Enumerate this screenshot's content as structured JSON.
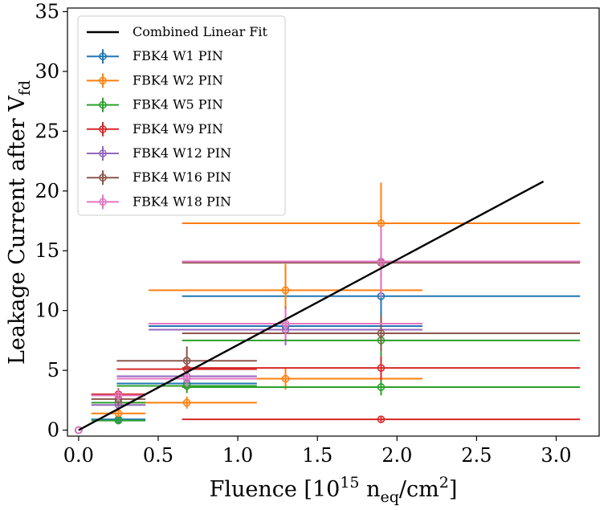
{
  "chart_data": {
    "type": "scatter",
    "title": "",
    "xlabel": {
      "main": "Fluence [10",
      "sup1": "15",
      "mid": " n",
      "sub": "eq",
      "after": "/cm",
      "sup2": "2",
      "close": "]"
    },
    "ylabel": {
      "main": "Leakage Current after V",
      "sub": "fd"
    },
    "xlim": [
      -0.07,
      3.27
    ],
    "ylim": [
      -0.5,
      35.3
    ],
    "xticks": [
      0.0,
      0.5,
      1.0,
      1.5,
      2.0,
      2.5,
      3.0
    ],
    "xtick_labels": [
      "0.0",
      "0.5",
      "1.0",
      "1.5",
      "2.0",
      "2.5",
      "3.0"
    ],
    "yticks": [
      0,
      5,
      10,
      15,
      20,
      25,
      30,
      35
    ],
    "ytick_labels": [
      "0",
      "5",
      "10",
      "15",
      "20",
      "25",
      "30",
      "35"
    ],
    "legend_position": "top-left",
    "fit": {
      "name": "Combined Linear Fit",
      "color": "#000000",
      "x": [
        0.0,
        2.92
      ],
      "y": [
        0.0,
        20.8
      ]
    },
    "series": [
      {
        "name": "FBK4 W1 PIN",
        "color": "#1f77b4",
        "points": [
          {
            "x": 0.0,
            "y": 0.0,
            "xerr": 0.0,
            "yerr": 0.0
          },
          {
            "x": 0.25,
            "y": 0.9,
            "xerr": 0.17,
            "yerr": 0.2
          },
          {
            "x": 0.68,
            "y": 3.9,
            "xerr": 0.44,
            "yerr": 0.6
          },
          {
            "x": 1.3,
            "y": 8.7,
            "xerr": 0.86,
            "yerr": 1.0
          },
          {
            "x": 1.9,
            "y": 11.2,
            "xerr": 1.25,
            "yerr": 2.0
          }
        ]
      },
      {
        "name": "FBK4 W2 PIN",
        "color": "#ff7f0e",
        "points": [
          {
            "x": 0.0,
            "y": 0.0,
            "xerr": 0.0,
            "yerr": 0.0
          },
          {
            "x": 0.25,
            "y": 1.4,
            "xerr": 0.17,
            "yerr": 0.3
          },
          {
            "x": 0.68,
            "y": 2.3,
            "xerr": 0.44,
            "yerr": 0.5
          },
          {
            "x": 1.3,
            "y": 4.3,
            "xerr": 0.86,
            "yerr": 0.9
          },
          {
            "x": 1.3,
            "y": 11.7,
            "xerr": 0.86,
            "yerr": 2.2
          },
          {
            "x": 1.9,
            "y": 17.3,
            "xerr": 1.25,
            "yerr": 3.4
          }
        ]
      },
      {
        "name": "FBK4 W5 PIN",
        "color": "#2ca02c",
        "points": [
          {
            "x": 0.0,
            "y": 0.0,
            "xerr": 0.0,
            "yerr": 0.0
          },
          {
            "x": 0.25,
            "y": 0.8,
            "xerr": 0.17,
            "yerr": 0.2
          },
          {
            "x": 0.25,
            "y": 2.3,
            "xerr": 0.17,
            "yerr": 0.4
          },
          {
            "x": 0.68,
            "y": 3.7,
            "xerr": 0.44,
            "yerr": 0.6
          },
          {
            "x": 1.9,
            "y": 3.6,
            "xerr": 1.25,
            "yerr": 0.7
          },
          {
            "x": 1.9,
            "y": 7.5,
            "xerr": 1.25,
            "yerr": 1.3
          }
        ]
      },
      {
        "name": "FBK4 W9 PIN",
        "color": "#d62728",
        "points": [
          {
            "x": 0.0,
            "y": 0.0,
            "xerr": 0.0,
            "yerr": 0.0
          },
          {
            "x": 0.25,
            "y": 3.0,
            "xerr": 0.17,
            "yerr": 0.5
          },
          {
            "x": 0.68,
            "y": 5.1,
            "xerr": 0.44,
            "yerr": 0.8
          },
          {
            "x": 1.9,
            "y": 0.9,
            "xerr": 1.25,
            "yerr": 0.2
          },
          {
            "x": 1.9,
            "y": 5.2,
            "xerr": 1.25,
            "yerr": 1.0
          }
        ]
      },
      {
        "name": "FBK4 W12 PIN",
        "color": "#9467bd",
        "points": [
          {
            "x": 0.0,
            "y": 0.0,
            "xerr": 0.0,
            "yerr": 0.0
          },
          {
            "x": 0.25,
            "y": 2.1,
            "xerr": 0.17,
            "yerr": 0.4
          },
          {
            "x": 0.68,
            "y": 4.5,
            "xerr": 0.44,
            "yerr": 0.7
          },
          {
            "x": 1.3,
            "y": 8.4,
            "xerr": 0.86,
            "yerr": 1.3
          },
          {
            "x": 1.9,
            "y": 14.1,
            "xerr": 1.25,
            "yerr": 2.6
          }
        ]
      },
      {
        "name": "FBK4 W16 PIN",
        "color": "#8c564b",
        "points": [
          {
            "x": 0.0,
            "y": 0.0,
            "xerr": 0.0,
            "yerr": 0.0
          },
          {
            "x": 0.25,
            "y": 2.6,
            "xerr": 0.17,
            "yerr": 0.5
          },
          {
            "x": 0.68,
            "y": 5.8,
            "xerr": 0.44,
            "yerr": 1.2
          },
          {
            "x": 1.3,
            "y": 8.9,
            "xerr": 0.86,
            "yerr": 1.4
          },
          {
            "x": 1.9,
            "y": 8.1,
            "xerr": 1.25,
            "yerr": 1.5
          },
          {
            "x": 1.9,
            "y": 14.0,
            "xerr": 1.25,
            "yerr": 2.6
          }
        ]
      },
      {
        "name": "FBK4 W18 PIN",
        "color": "#e377c2",
        "points": [
          {
            "x": 0.0,
            "y": 0.0,
            "xerr": 0.0,
            "yerr": 0.0
          },
          {
            "x": 0.25,
            "y": 2.9,
            "xerr": 0.17,
            "yerr": 0.5
          },
          {
            "x": 0.68,
            "y": 4.3,
            "xerr": 0.44,
            "yerr": 0.7
          },
          {
            "x": 1.3,
            "y": 8.9,
            "xerr": 0.86,
            "yerr": 1.3
          },
          {
            "x": 1.9,
            "y": 14.1,
            "xerr": 1.25,
            "yerr": 3.0
          }
        ]
      }
    ]
  }
}
